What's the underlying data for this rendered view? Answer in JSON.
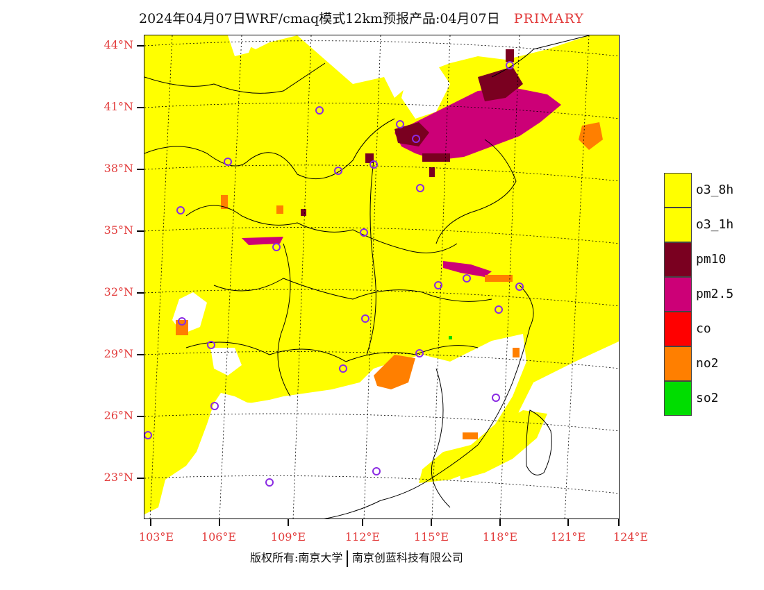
{
  "title": {
    "text": "2024年04月07日WRF/cmaq模式12km预报产品:04月07日",
    "status": "PRIMARY"
  },
  "axes": {
    "latitudes": [
      "44°N",
      "41°N",
      "38°N",
      "35°N",
      "32°N",
      "29°N",
      "26°N",
      "23°N"
    ],
    "longitudes": [
      "103°E",
      "106°E",
      "109°E",
      "112°E",
      "115°E",
      "118°E",
      "121°E",
      "124°E"
    ]
  },
  "legend": {
    "items": [
      {
        "label": "o3_8h",
        "color": "#ffff00"
      },
      {
        "label": "o3_1h",
        "color": "#ffff00"
      },
      {
        "label": "pm10",
        "color": "#7a0020"
      },
      {
        "label": "pm2.5",
        "color": "#cc0077"
      },
      {
        "label": "co",
        "color": "#ff0000"
      },
      {
        "label": "no2",
        "color": "#ff7f00"
      },
      {
        "label": "so2",
        "color": "#00dd00"
      }
    ]
  },
  "footer": {
    "left": "版权所有:南京大学",
    "right": "南京创蓝科技有限公司"
  },
  "colors": {
    "axis_label": "#e23b3b",
    "o3": "#ffff00",
    "pm10": "#7a0020",
    "pm25": "#cc0077",
    "no2": "#ff7f00",
    "so2": "#00dd00",
    "station_marker": "#8a2be2"
  }
}
